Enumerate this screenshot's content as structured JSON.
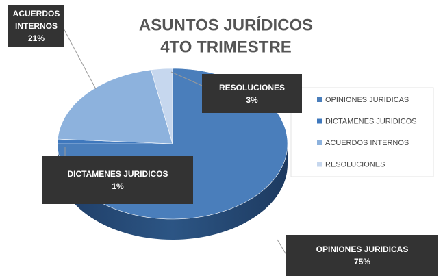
{
  "chart_data": {
    "type": "pie",
    "title": "ASUNTOS JURÍDICOS",
    "subtitle": "4TO TRIMESTRE",
    "categories": [
      "OPINIONES JURIDICAS",
      "DICTAMENES JURIDICOS",
      "ACUERDOS INTERNOS",
      "RESOLUCIONES"
    ],
    "values": [
      75,
      1,
      21,
      3
    ],
    "value_labels": [
      "75%",
      "1%",
      "21%",
      "3%"
    ],
    "colors": [
      "#4a7ebb",
      "#3f78bd",
      "#8db2dd",
      "#c6d7ee"
    ],
    "legend": "right"
  }
}
